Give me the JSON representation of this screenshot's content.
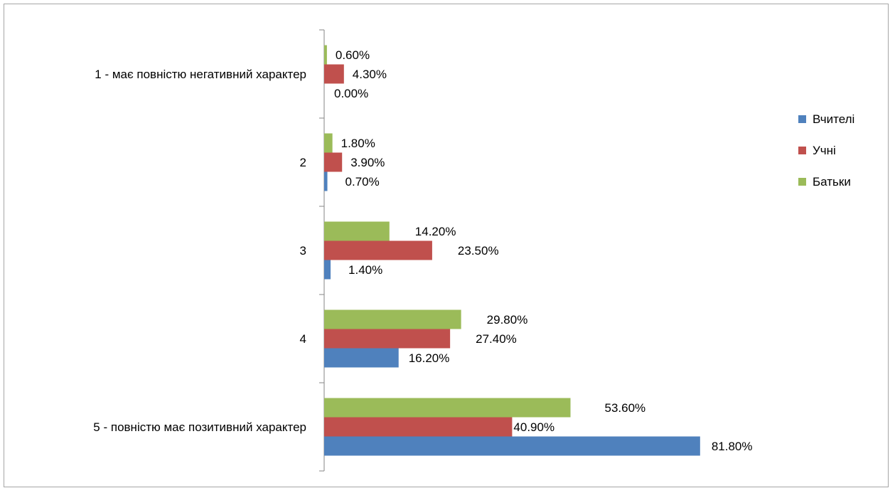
{
  "chart_data": {
    "type": "bar",
    "orientation": "horizontal",
    "categories": [
      "1 - має повністю негативний характер",
      "2",
      "3",
      "4",
      "5 - повністю має позитивний характер"
    ],
    "series": [
      {
        "name": "Вчителі",
        "color": "#4f81bd",
        "values": [
          0.0,
          0.7,
          1.4,
          16.2,
          81.8
        ],
        "labels": [
          "0.00%",
          "0.70%",
          "1.40%",
          "16.20%",
          "81.80%"
        ]
      },
      {
        "name": "Учні",
        "color": "#c0504d",
        "values": [
          4.3,
          3.9,
          23.5,
          27.4,
          40.9
        ],
        "labels": [
          "4.30%",
          "3.90%",
          "23.50%",
          "27.40%",
          "40.90%"
        ]
      },
      {
        "name": "Батьки",
        "color": "#9bbb59",
        "values": [
          0.6,
          1.8,
          14.2,
          29.8,
          53.6
        ],
        "labels": [
          "0.60%",
          "1.80%",
          "14.20%",
          "29.80%",
          "53.60%"
        ]
      }
    ],
    "xlim": [
      0,
      100
    ],
    "grid": false,
    "legend_position": "right",
    "title": "",
    "xlabel": "",
    "ylabel": ""
  }
}
